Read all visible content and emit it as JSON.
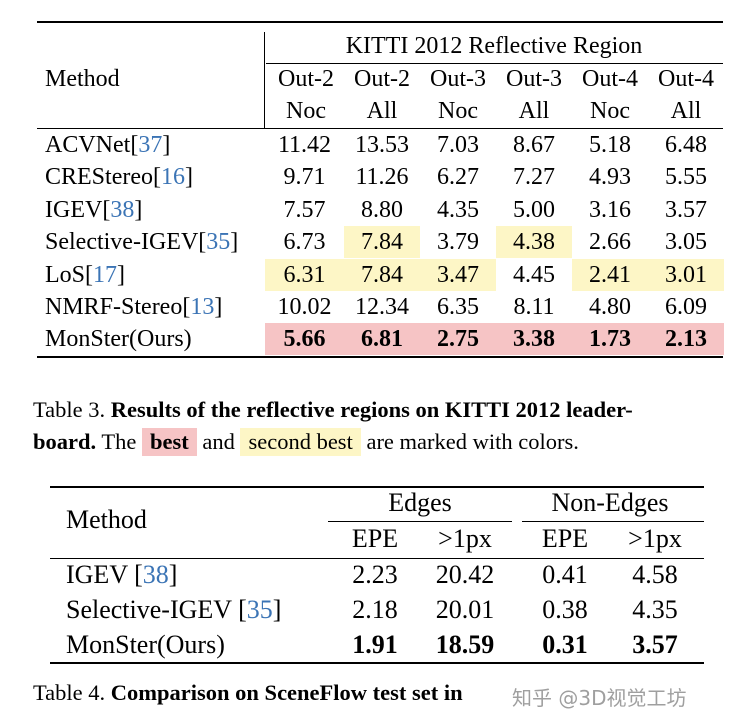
{
  "table3": {
    "group_header": "KITTI 2012 Reflective Region",
    "method_header": "Method",
    "columns": [
      {
        "top": "Out-2",
        "bottom": "Noc"
      },
      {
        "top": "Out-2",
        "bottom": "All"
      },
      {
        "top": "Out-3",
        "bottom": "Noc"
      },
      {
        "top": "Out-3",
        "bottom": "All"
      },
      {
        "top": "Out-4",
        "bottom": "Noc"
      },
      {
        "top": "Out-4",
        "bottom": "All"
      }
    ],
    "rows": [
      {
        "name": "ACVNet",
        "cite": "37",
        "values": [
          "11.42",
          "13.53",
          "7.03",
          "8.67",
          "5.18",
          "6.48"
        ],
        "marks": [
          "",
          "",
          "",
          "",
          "",
          ""
        ]
      },
      {
        "name": "CREStereo",
        "cite": "16",
        "values": [
          "9.71",
          "11.26",
          "6.27",
          "7.27",
          "4.93",
          "5.55"
        ],
        "marks": [
          "",
          "",
          "",
          "",
          "",
          ""
        ]
      },
      {
        "name": "IGEV",
        "cite": "38",
        "values": [
          "7.57",
          "8.80",
          "4.35",
          "5.00",
          "3.16",
          "3.57"
        ],
        "marks": [
          "",
          "",
          "",
          "",
          "",
          ""
        ]
      },
      {
        "name": "Selective-IGEV",
        "cite": "35",
        "values": [
          "6.73",
          "7.84",
          "3.79",
          "4.38",
          "2.66",
          "3.05"
        ],
        "marks": [
          "",
          "second",
          "",
          "second",
          "",
          ""
        ]
      },
      {
        "name": "LoS",
        "cite": "17",
        "values": [
          "6.31",
          "7.84",
          "3.47",
          "4.45",
          "2.41",
          "3.01"
        ],
        "marks": [
          "second",
          "second",
          "second",
          "",
          "second",
          "second"
        ]
      },
      {
        "name": "NMRF-Stereo",
        "cite": "13",
        "values": [
          "10.02",
          "12.34",
          "6.35",
          "8.11",
          "4.80",
          "6.09"
        ],
        "marks": [
          "",
          "",
          "",
          "",
          "",
          ""
        ]
      },
      {
        "name": "MonSter(Ours)",
        "cite": "",
        "values": [
          "5.66",
          "6.81",
          "2.75",
          "3.38",
          "1.73",
          "2.13"
        ],
        "marks": [
          "best",
          "best",
          "best",
          "best",
          "best",
          "best"
        ]
      }
    ]
  },
  "caption3": {
    "label": "Table 3.",
    "bold_line1": "Results of the reflective regions on KITTI 2012 leader-",
    "bold_line2": "board.",
    "text_a": "The",
    "best_chip": "best",
    "text_b": "and",
    "second_chip": "second best",
    "text_c": "are marked with colors."
  },
  "table4": {
    "method_header": "Method",
    "groups": [
      "Edges",
      "Non-Edges"
    ],
    "subheaders": [
      "EPE",
      ">1px",
      "EPE",
      ">1px"
    ],
    "rows": [
      {
        "name": "IGEV ",
        "cite": "38",
        "values": [
          "2.23",
          "20.42",
          "0.41",
          "4.58"
        ],
        "bold": false
      },
      {
        "name": "Selective-IGEV ",
        "cite": "35",
        "values": [
          "2.18",
          "20.01",
          "0.38",
          "4.35"
        ],
        "bold": false
      },
      {
        "name": "MonSter(Ours)",
        "cite": "",
        "values": [
          "1.91",
          "18.59",
          "0.31",
          "3.57"
        ],
        "bold": true
      }
    ]
  },
  "caption4": {
    "label": "Table 4.",
    "bold_text": "Comparison on SceneFlow test set in"
  },
  "watermark": "知乎 @3D视觉工坊",
  "colors": {
    "best": "#f6c4c5",
    "second": "#fdf6c6",
    "citation": "#3b74b5"
  }
}
